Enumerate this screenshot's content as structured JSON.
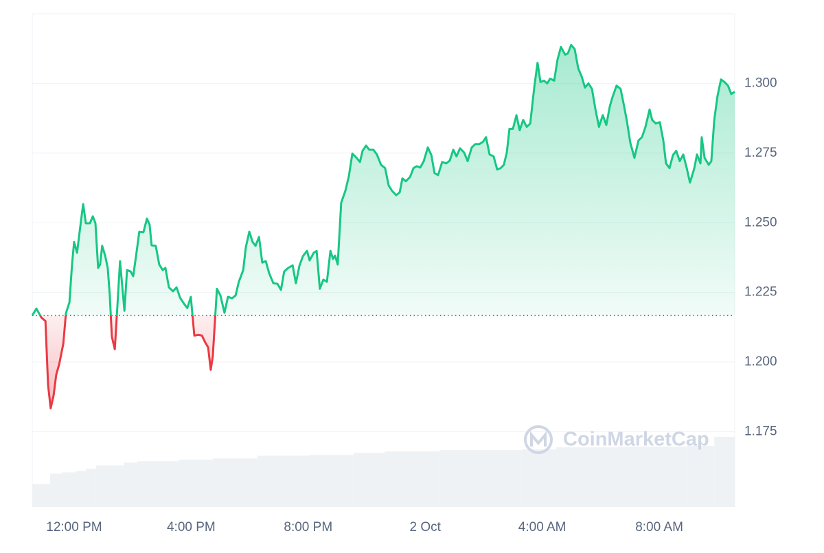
{
  "chart_data": {
    "type": "line",
    "x": [
      10.57,
      10.71,
      10.88,
      11.02,
      11.11,
      11.2,
      11.3,
      11.39,
      11.49,
      11.63,
      11.72,
      11.84,
      11.93,
      12.0,
      12.1,
      12.21,
      12.31,
      12.4,
      12.54,
      12.64,
      12.73,
      12.82,
      12.89,
      12.96,
      13.06,
      13.15,
      13.22,
      13.29,
      13.39,
      13.46,
      13.57,
      13.72,
      13.81,
      13.93,
      14.02,
      14.11,
      14.23,
      14.37,
      14.49,
      14.58,
      14.65,
      14.79,
      14.91,
      15.03,
      15.12,
      15.24,
      15.38,
      15.5,
      15.62,
      15.76,
      15.87,
      15.99,
      16.11,
      16.25,
      16.37,
      16.48,
      16.58,
      16.67,
      16.74,
      16.88,
      17.0,
      17.14,
      17.26,
      17.4,
      17.52,
      17.63,
      17.78,
      17.87,
      17.99,
      18.1,
      18.2,
      18.32,
      18.43,
      18.55,
      18.67,
      18.81,
      18.95,
      19.07,
      19.18,
      19.32,
      19.47,
      19.58,
      19.7,
      19.82,
      19.96,
      20.05,
      20.19,
      20.29,
      20.4,
      20.52,
      20.64,
      20.76,
      20.85,
      20.92,
      21.01,
      21.13,
      21.27,
      21.39,
      21.51,
      21.65,
      21.77,
      21.86,
      21.98,
      22.09,
      22.23,
      22.35,
      22.49,
      22.63,
      22.75,
      22.87,
      23.01,
      23.13,
      23.22,
      23.34,
      23.48,
      23.6,
      23.71,
      23.83,
      23.95,
      24.09,
      24.21,
      24.32,
      24.44,
      24.58,
      24.72,
      24.84,
      24.96,
      25.07,
      25.19,
      25.33,
      25.45,
      25.59,
      25.71,
      25.85,
      25.97,
      26.08,
      26.2,
      26.34,
      26.46,
      26.58,
      26.69,
      26.79,
      26.88,
      27.0,
      27.12,
      27.23,
      27.35,
      27.47,
      27.59,
      27.73,
      27.84,
      27.94,
      28.06,
      28.17,
      28.27,
      28.41,
      28.52,
      28.64,
      28.78,
      28.88,
      28.99,
      29.11,
      29.23,
      29.35,
      29.46,
      29.58,
      29.7,
      29.82,
      29.94,
      30.07,
      30.19,
      30.31,
      30.4,
      30.54,
      30.68,
      30.8,
      30.9,
      31.01,
      31.15,
      31.29,
      31.41,
      31.53,
      31.67,
      31.76,
      31.88,
      32.02,
      32.14,
      32.23,
      32.35,
      32.47,
      32.58,
      32.7,
      32.82,
      32.94,
      33.05,
      33.2,
      33.29,
      33.41,
      33.45,
      33.55,
      33.69,
      33.78,
      33.88,
      33.99,
      34.11,
      34.23,
      34.35,
      34.46,
      34.58
    ],
    "values": [
      1.2167,
      1.2192,
      1.216,
      1.2147,
      1.1918,
      1.1834,
      1.1881,
      1.1955,
      1.1992,
      1.2066,
      1.2175,
      1.2214,
      1.235,
      1.2431,
      1.2392,
      1.2486,
      1.2567,
      1.2498,
      1.2498,
      1.2523,
      1.2498,
      1.2338,
      1.235,
      1.2417,
      1.2382,
      1.2338,
      1.2239,
      1.2091,
      1.2046,
      1.2165,
      1.2362,
      1.2184,
      1.233,
      1.2325,
      1.2308,
      1.2375,
      1.2468,
      1.2466,
      1.2515,
      1.2493,
      1.2419,
      1.2417,
      1.235,
      1.233,
      1.2338,
      1.2268,
      1.2254,
      1.2268,
      1.2231,
      1.2209,
      1.2194,
      1.2234,
      1.2095,
      1.2098,
      1.2095,
      1.2071,
      1.2053,
      1.1972,
      1.2021,
      1.2263,
      1.2239,
      1.2177,
      1.2234,
      1.2229,
      1.2239,
      1.2288,
      1.233,
      1.2412,
      1.2468,
      1.2431,
      1.2417,
      1.2449,
      1.2357,
      1.2362,
      1.2318,
      1.2283,
      1.2281,
      1.2259,
      1.2325,
      1.2338,
      1.2347,
      1.2283,
      1.2345,
      1.238,
      1.2399,
      1.2365,
      1.2392,
      1.2399,
      1.2263,
      1.2296,
      1.2288,
      1.2399,
      1.237,
      1.2382,
      1.235,
      1.2572,
      1.2614,
      1.2666,
      1.2748,
      1.2733,
      1.2718,
      1.2758,
      1.2777,
      1.2762,
      1.2762,
      1.2745,
      1.2708,
      1.2696,
      1.2634,
      1.2614,
      1.2599,
      1.2609,
      1.2659,
      1.2649,
      1.2664,
      1.2696,
      1.2703,
      1.2698,
      1.2721,
      1.277,
      1.2743,
      1.2678,
      1.2671,
      1.2718,
      1.2713,
      1.2723,
      1.2762,
      1.2738,
      1.2767,
      1.2752,
      1.2721,
      1.277,
      1.2782,
      1.2782,
      1.279,
      1.2807,
      1.2745,
      1.2738,
      1.2691,
      1.2696,
      1.2708,
      1.2752,
      1.2837,
      1.2837,
      1.2886,
      1.2832,
      1.2869,
      1.2844,
      1.2856,
      1.2987,
      1.3074,
      1.3005,
      1.301,
      1.3,
      1.3017,
      1.301,
      1.3084,
      1.3131,
      1.3103,
      1.3108,
      1.3138,
      1.3123,
      1.3054,
      1.3024,
      1.2985,
      1.3,
      1.298,
      1.2906,
      1.2844,
      1.2886,
      1.2851,
      1.2918,
      1.295,
      1.2992,
      1.298,
      1.2918,
      1.2861,
      1.2787,
      1.2733,
      1.2795,
      1.2807,
      1.2844,
      1.2906,
      1.2869,
      1.2856,
      1.2861,
      1.2795,
      1.2713,
      1.2696,
      1.2743,
      1.2758,
      1.2721,
      1.2745,
      1.2696,
      1.2644,
      1.2696,
      1.2745,
      1.2713,
      1.2807,
      1.2733,
      1.2708,
      1.2721,
      1.2869,
      1.2955,
      1.3014,
      1.3005,
      1.2992,
      1.2962,
      1.297
    ],
    "baseline": 1.2167,
    "color_up": "#16c784",
    "color_down": "#ea3943",
    "volume": {
      "x": [
        10.57,
        11.18,
        11.58,
        12.05,
        12.4,
        12.75,
        13.69,
        14.16,
        15.57,
        16.74,
        18.27,
        20.03,
        21.55,
        22.61,
        24.49,
        27.3,
        28.48,
        30.59,
        32.94,
        33.88
      ],
      "values": [
        33,
        48,
        50,
        52,
        55,
        60,
        64,
        66,
        68,
        70,
        74,
        75,
        78,
        80,
        82,
        83,
        86,
        87,
        88,
        101
      ],
      "color": "#eff2f5"
    },
    "xlim": [
      10.57,
      34.58
    ],
    "xticks": [
      {
        "value": 12,
        "label": "12:00 PM"
      },
      {
        "value": 16,
        "label": "4:00 PM"
      },
      {
        "value": 20,
        "label": "8:00 PM"
      },
      {
        "value": 24,
        "label": "2 Oct"
      },
      {
        "value": 28,
        "label": "4:00 AM"
      },
      {
        "value": 32,
        "label": "8:00 AM"
      }
    ],
    "ylim": [
      1.148,
      1.325
    ],
    "yticks": [
      {
        "value": 1.175,
        "label": "1.175"
      },
      {
        "value": 1.2,
        "label": "1.200"
      },
      {
        "value": 1.225,
        "label": "1.225"
      },
      {
        "value": 1.25,
        "label": "1.250"
      },
      {
        "value": 1.275,
        "label": "1.275"
      },
      {
        "value": 1.3,
        "label": "1.300"
      }
    ],
    "grid": true,
    "watermark": "CoinMarketCap"
  }
}
